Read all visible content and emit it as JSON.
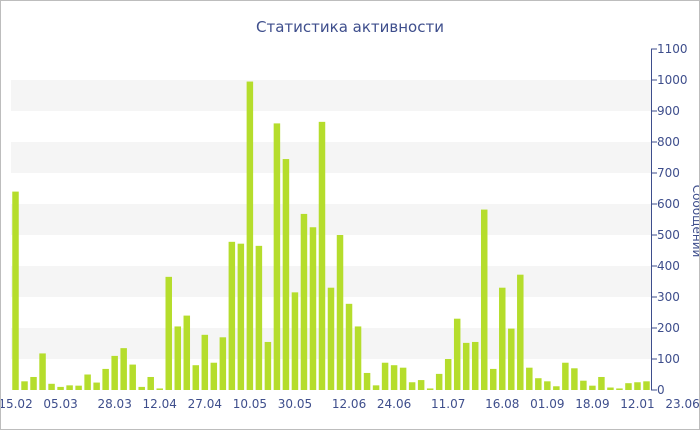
{
  "chart_data": {
    "type": "bar",
    "title": "Статистика активности",
    "ylabel": "Сообщений",
    "xlabel": "",
    "ylim": [
      0,
      1100
    ],
    "y_ticks": [
      0,
      100,
      200,
      300,
      400,
      500,
      600,
      700,
      800,
      900,
      1000,
      1100
    ],
    "y_axis_position": "right",
    "grid": "alternating horizontal bands",
    "legend": "none",
    "colors": {
      "bar": "#b5dd2c",
      "text": "#3e4e8c",
      "band": "#f5f5f5"
    },
    "x_tick_labels": [
      {
        "label": "15.02",
        "index": 0
      },
      {
        "label": "05.03",
        "index": 5
      },
      {
        "label": "28.03",
        "index": 11
      },
      {
        "label": "12.04",
        "index": 16
      },
      {
        "label": "27.04",
        "index": 21
      },
      {
        "label": "10.05",
        "index": 26
      },
      {
        "label": "30.05",
        "index": 31
      },
      {
        "label": "12.06",
        "index": 37
      },
      {
        "label": "24.06",
        "index": 42
      },
      {
        "label": "11.07",
        "index": 48
      },
      {
        "label": "16.08",
        "index": 54
      },
      {
        "label": "01.09",
        "index": 59
      },
      {
        "label": "18.09",
        "index": 64
      },
      {
        "label": "12.01",
        "index": 69
      },
      {
        "label": "23.06",
        "index": 74
      }
    ],
    "values": [
      640,
      28,
      42,
      118,
      20,
      10,
      15,
      14,
      50,
      24,
      68,
      110,
      135,
      82,
      10,
      42,
      5,
      365,
      205,
      240,
      80,
      178,
      88,
      170,
      478,
      472,
      995,
      465,
      155,
      860,
      745,
      315,
      568,
      525,
      865,
      330,
      500,
      278,
      205,
      55,
      15,
      88,
      80,
      72,
      25,
      32,
      5,
      52,
      100,
      230,
      152,
      155,
      582,
      68,
      330,
      198,
      372,
      72,
      38,
      28,
      12,
      88,
      70,
      30,
      14,
      42,
      8,
      5,
      22,
      25,
      28
    ]
  }
}
